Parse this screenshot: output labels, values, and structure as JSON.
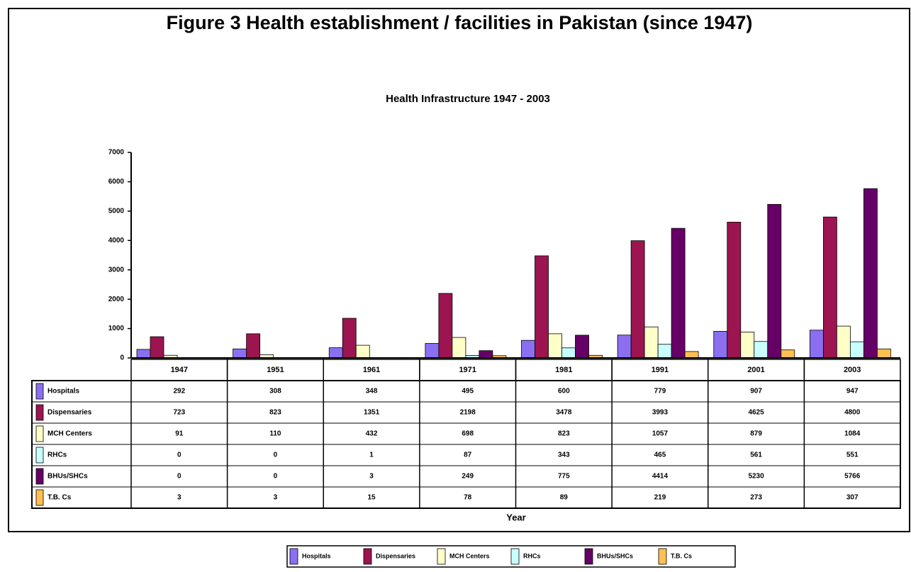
{
  "chart_data": {
    "type": "bar",
    "title": "Figure 3 Health establishment / facilities in Pakistan (since 1947)",
    "subtitle": "Health Infrastructure 1947 - 2003",
    "x_label": "Year",
    "categories": [
      "1947",
      "1951",
      "1961",
      "1971",
      "1981",
      "1991",
      "2001",
      "2003"
    ],
    "series": [
      {
        "name": "Hospitals",
        "color": "#8a70f0",
        "values": [
          292,
          308,
          348,
          495,
          600,
          779,
          907,
          947
        ]
      },
      {
        "name": "Dispensaries",
        "color": "#9c1450",
        "values": [
          723,
          823,
          1351,
          2198,
          3478,
          3993,
          4625,
          4800
        ]
      },
      {
        "name": "MCH Centers",
        "color": "#ffffc8",
        "values": [
          91,
          110,
          432,
          698,
          823,
          1057,
          879,
          1084
        ]
      },
      {
        "name": "RHCs",
        "color": "#c8ffff",
        "values": [
          0,
          0,
          1,
          87,
          343,
          465,
          561,
          551
        ]
      },
      {
        "name": "BHUs/SHCs",
        "color": "#660066",
        "values": [
          0,
          0,
          3,
          249,
          775,
          4414,
          5230,
          5766
        ]
      },
      {
        "name": "T.B. Cs",
        "color": "#ffc050",
        "values": [
          3,
          3,
          15,
          78,
          89,
          219,
          273,
          307
        ]
      }
    ],
    "ylim": [
      0,
      7000
    ],
    "yticks": [
      0,
      1000,
      2000,
      3000,
      4000,
      5000,
      6000,
      7000
    ],
    "legend": "bottom"
  }
}
